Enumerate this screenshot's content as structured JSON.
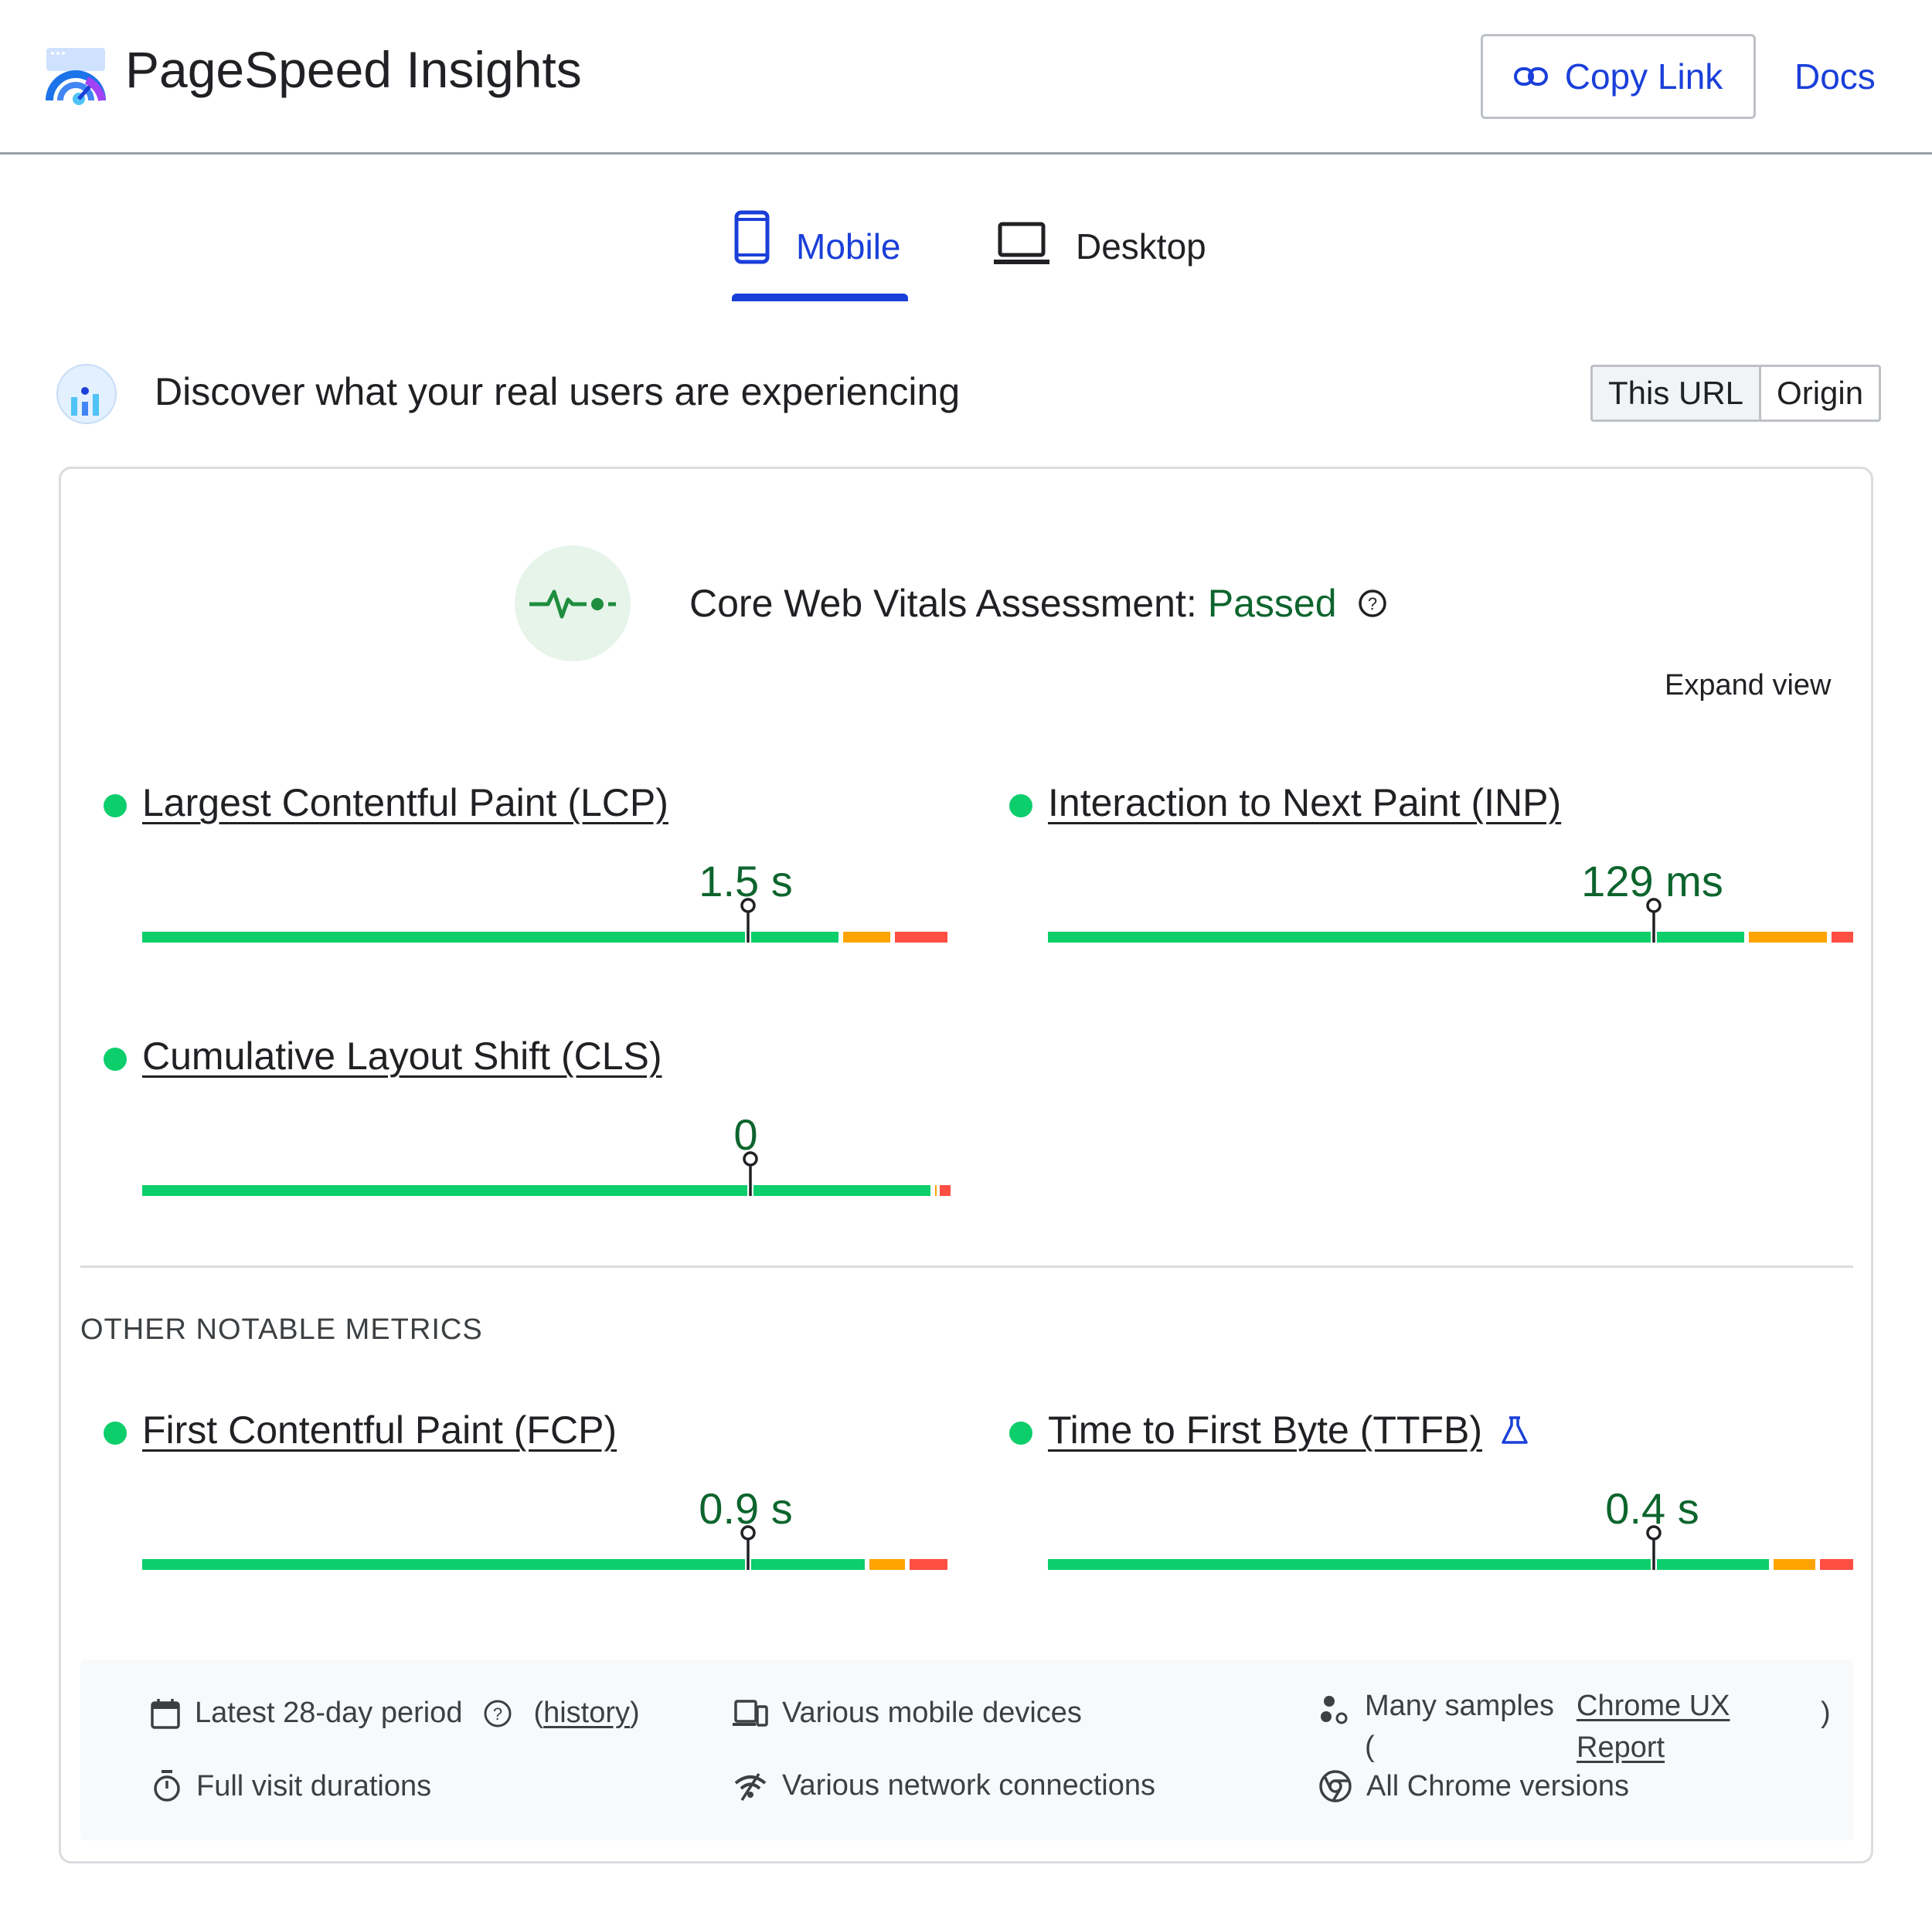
{
  "header": {
    "app_title": "PageSpeed Insights",
    "copy_link_label": "Copy Link",
    "docs_label": "Docs"
  },
  "tabs": [
    {
      "label": "Mobile",
      "selected": true
    },
    {
      "label": "Desktop",
      "selected": false
    }
  ],
  "crux": {
    "title": "Discover what your real users are experiencing",
    "toggle": [
      {
        "label": "This URL",
        "selected": true
      },
      {
        "label": "Origin",
        "selected": false
      }
    ]
  },
  "assessment": {
    "prefix": "Core Web Vitals Assessment:",
    "status": "Passed",
    "expand_label": "Expand view"
  },
  "metrics": [
    {
      "name": "Largest Contentful Paint (LCP)",
      "value": "1.5 s",
      "distribution": {
        "good": 0.868,
        "needs_improvement": 0.064,
        "poor": 0.068
      },
      "marker": 0.752
    },
    {
      "name": "Interaction to Next Paint (INP)",
      "value": "129 ms",
      "distribution": {
        "good": 0.868,
        "needs_improvement": 0.102,
        "poor": 0.03
      },
      "marker": 0.752
    },
    {
      "name": "Cumulative Layout Shift (CLS)",
      "value": "0",
      "distribution": {
        "good": 0.978,
        "needs_improvement": 0.006,
        "poor": 0.016
      },
      "marker": 0.752
    }
  ],
  "other_metrics_label": "OTHER NOTABLE METRICS",
  "other_metrics": [
    {
      "name": "First Contentful Paint (FCP)",
      "value": "0.9 s",
      "distribution": {
        "good": 0.9,
        "needs_improvement": 0.05,
        "poor": 0.05
      },
      "marker": 0.752
    },
    {
      "name": "Time to First Byte (TTFB)",
      "value": "0.4 s",
      "distribution": {
        "good": 0.898,
        "needs_improvement": 0.058,
        "poor": 0.044
      },
      "marker": 0.752,
      "experimental": true
    }
  ],
  "info": {
    "period": "Latest 28-day period",
    "history_link": "history",
    "devices": "Various mobile devices",
    "samples_prefix": "Many samples",
    "open_paren": "(",
    "crux_link_line1": "Chrome UX",
    "crux_link_line2": "Report",
    "close_paren": ")",
    "durations": "Full visit durations",
    "network": "Various network connections",
    "chrome": "All Chrome versions"
  },
  "colors": {
    "accent": "#1a3fd9",
    "good": "#0cce6b",
    "needs_improvement": "#ffa400",
    "poor": "#ff4e42",
    "pass_text": "#0d652d"
  }
}
